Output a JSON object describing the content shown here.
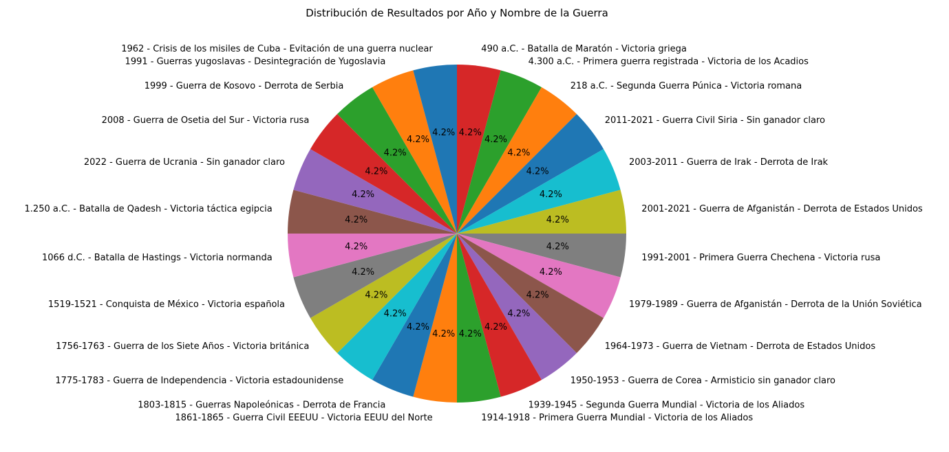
{
  "chart_data": {
    "type": "pie",
    "title": "Distribución de Resultados por Año y Nombre de la Guerra",
    "start_angle_deg": 90,
    "direction": "clockwise",
    "slices": [
      {
        "label": "490 a.C. - Batalla de Maratón - Victoria griega",
        "value": 1,
        "pct_label": "4.2%",
        "color": "#d62728"
      },
      {
        "label": "4.300 a.C. - Primera guerra registrada - Victoria de los Acadios",
        "value": 1,
        "pct_label": "4.2%",
        "color": "#2ca02c"
      },
      {
        "label": "218 a.C. - Segunda Guerra Púnica - Victoria romana",
        "value": 1,
        "pct_label": "4.2%",
        "color": "#ff7f0e"
      },
      {
        "label": "2011-2021 - Guerra Civil Siria - Sin ganador claro",
        "value": 1,
        "pct_label": "4.2%",
        "color": "#1f77b4"
      },
      {
        "label": "2003-2011 - Guerra de Irak - Derrota de Irak",
        "value": 1,
        "pct_label": "4.2%",
        "color": "#17becf"
      },
      {
        "label": "2001-2021 - Guerra de Afganistán - Derrota de Estados Unidos",
        "value": 1,
        "pct_label": "4.2%",
        "color": "#bcbd22"
      },
      {
        "label": "1991-2001 - Primera Guerra Chechena - Victoria rusa",
        "value": 1,
        "pct_label": "4.2%",
        "color": "#7f7f7f"
      },
      {
        "label": "1979-1989 - Guerra de Afganistán - Derrota de la Unión Soviética",
        "value": 1,
        "pct_label": "4.2%",
        "color": "#e377c2"
      },
      {
        "label": "1964-1973 - Guerra de Vietnam - Derrota de Estados Unidos",
        "value": 1,
        "pct_label": "4.2%",
        "color": "#8c564b"
      },
      {
        "label": "1950-1953 - Guerra de Corea - Armisticio sin ganador claro",
        "value": 1,
        "pct_label": "4.2%",
        "color": "#9467bd"
      },
      {
        "label": "1939-1945 - Segunda Guerra Mundial - Victoria de los Aliados",
        "value": 1,
        "pct_label": "4.2%",
        "color": "#d62728"
      },
      {
        "label": "1914-1918 - Primera Guerra Mundial - Victoria de los Aliados",
        "value": 1,
        "pct_label": "4.2%",
        "color": "#2ca02c"
      },
      {
        "label": "1861-1865 - Guerra Civil EEEUU - Victoria EEUU del Norte",
        "value": 1,
        "pct_label": "4.2%",
        "color": "#ff7f0e"
      },
      {
        "label": "1803-1815 - Guerras Napoleónicas - Derrota de Francia",
        "value": 1,
        "pct_label": "4.2%",
        "color": "#1f77b4"
      },
      {
        "label": "1775-1783 - Guerra de Independencia  - Victoria estadounidense",
        "value": 1,
        "pct_label": "4.2%",
        "color": "#17becf"
      },
      {
        "label": "1756-1763 - Guerra de los Siete Años - Victoria británica",
        "value": 1,
        "pct_label": "4.2%",
        "color": "#bcbd22"
      },
      {
        "label": "1519-1521 - Conquista de México - Victoria española",
        "value": 1,
        "pct_label": "4.2%",
        "color": "#7f7f7f"
      },
      {
        "label": "1066 d.C. - Batalla de Hastings - Victoria normanda",
        "value": 1,
        "pct_label": "4.2%",
        "color": "#e377c2"
      },
      {
        "label": "1.250 a.C. - Batalla de Qadesh - Victoria táctica egipcia",
        "value": 1,
        "pct_label": "4.2%",
        "color": "#8c564b"
      },
      {
        "label": "2022 - Guerra de Ucrania - Sin ganador claro",
        "value": 1,
        "pct_label": "4.2%",
        "color": "#9467bd"
      },
      {
        "label": "2008 - Guerra de Osetia del Sur - Victoria rusa",
        "value": 1,
        "pct_label": "4.2%",
        "color": "#d62728"
      },
      {
        "label": "1999 - Guerra de Kosovo - Derrota de Serbia",
        "value": 1,
        "pct_label": "4.2%",
        "color": "#2ca02c"
      },
      {
        "label": "1991 - Guerras yugoslavas - Desintegración de Yugoslavia",
        "value": 1,
        "pct_label": "4.2%",
        "color": "#ff7f0e"
      },
      {
        "label": "1962 - Crisis de los misiles de Cuba - Evitación de una guerra nuclear",
        "value": 1,
        "pct_label": "4.2%",
        "color": "#1f77b4"
      }
    ]
  }
}
